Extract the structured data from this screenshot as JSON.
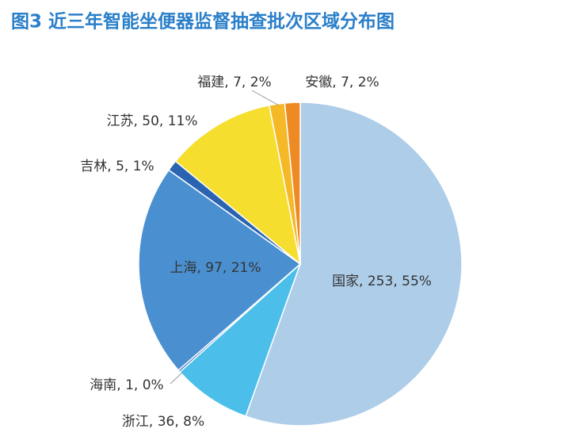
{
  "chart_data": {
    "type": "pie",
    "title": "图3  近三年智能坐便器监督抽查批次区域分布图",
    "values": [
      253,
      36,
      1,
      97,
      5,
      50,
      7,
      7
    ],
    "value_labels": [
      "国家, 253, 55%",
      "浙江, 36, 8%",
      "海南, 1, 0%",
      "上海, 97, 21%",
      "吉林, 5, 1%",
      "江苏, 50, 11%",
      "福建, 7, 2%",
      "安徽, 7, 2%"
    ],
    "colors": [
      "#aecde9",
      "#4bbfea",
      "#2f6db5",
      "#4a90d0",
      "#2a64b0",
      "#f5de2e",
      "#f5b827",
      "#ee8a24"
    ]
  }
}
